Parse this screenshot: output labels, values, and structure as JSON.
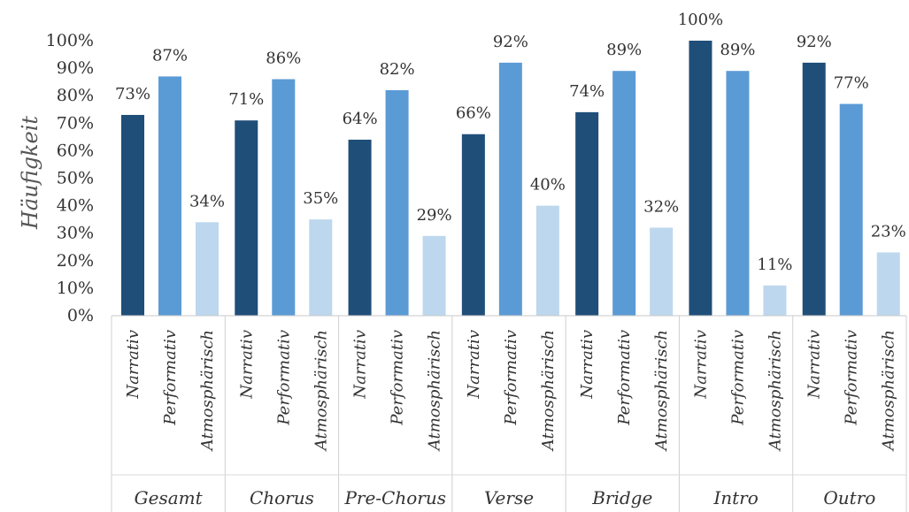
{
  "chart_data": {
    "type": "bar",
    "ylabel": "Häufigkeit",
    "xlabel": "",
    "ylim": [
      0,
      100
    ],
    "y_ticks": [
      "0%",
      "10%",
      "20%",
      "30%",
      "40%",
      "50%",
      "60%",
      "70%",
      "80%",
      "90%",
      "100%"
    ],
    "grid": false,
    "categories": [
      "Gesamt",
      "Chorus",
      "Pre-Chorus",
      "Verse",
      "Bridge",
      "Intro",
      "Outro"
    ],
    "subcategories": [
      "Narrativ",
      "Performativ",
      "Atmosphärisch"
    ],
    "series": [
      {
        "values": [
          73,
          71,
          64,
          66,
          74,
          100,
          92
        ],
        "labels": [
          "73%",
          "71%",
          "64%",
          "66%",
          "74%",
          "100%",
          "92%"
        ],
        "color": "#1f4e79"
      },
      {
        "values": [
          87,
          86,
          82,
          92,
          89,
          89,
          77
        ],
        "labels": [
          "87%",
          "86%",
          "82%",
          "92%",
          "89%",
          "89%",
          "77%"
        ],
        "color": "#5b9bd5"
      },
      {
        "values": [
          34,
          35,
          29,
          40,
          32,
          11,
          23
        ],
        "labels": [
          "34%",
          "35%",
          "29%",
          "40%",
          "32%",
          "11%",
          "23%"
        ],
        "color": "#bdd7ee"
      }
    ]
  }
}
